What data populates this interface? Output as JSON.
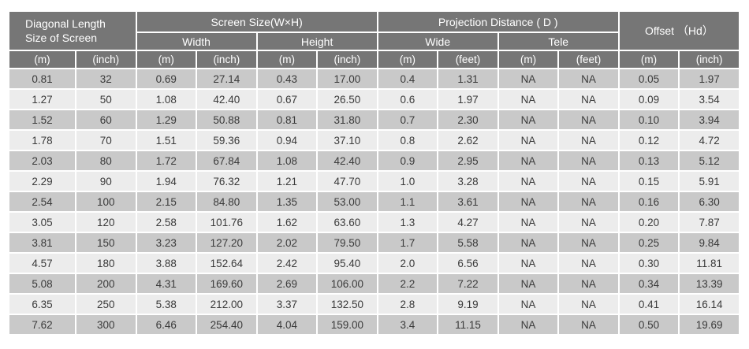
{
  "table": {
    "header": {
      "diagonal_line1": "Diagonal Length",
      "diagonal_line2": "Size of Screen",
      "screen_size": "Screen Size(W×H)",
      "projection_distance": "Projection Distance ( D )",
      "offset": "Offset （Hd）",
      "width": "Width",
      "height": "Height",
      "wide": "Wide",
      "tele": "Tele",
      "units": [
        "(m)",
        "(inch)",
        "(m)",
        "(inch)",
        "(m)",
        "(inch)",
        "(m)",
        "(feet)",
        "(m)",
        "(feet)",
        "(m)",
        "(inch)"
      ]
    },
    "rows": [
      [
        "0.81",
        "32",
        "0.69",
        "27.14",
        "0.43",
        "17.00",
        "0.4",
        "1.31",
        "NA",
        "NA",
        "0.05",
        "1.97"
      ],
      [
        "1.27",
        "50",
        "1.08",
        "42.40",
        "0.67",
        "26.50",
        "0.6",
        "1.97",
        "NA",
        "NA",
        "0.09",
        "3.54"
      ],
      [
        "1.52",
        "60",
        "1.29",
        "50.88",
        "0.81",
        "31.80",
        "0.7",
        "2.30",
        "NA",
        "NA",
        "0.10",
        "3.94"
      ],
      [
        "1.78",
        "70",
        "1.51",
        "59.36",
        "0.94",
        "37.10",
        "0.8",
        "2.62",
        "NA",
        "NA",
        "0.12",
        "4.72"
      ],
      [
        "2.03",
        "80",
        "1.72",
        "67.84",
        "1.08",
        "42.40",
        "0.9",
        "2.95",
        "NA",
        "NA",
        "0.13",
        "5.12"
      ],
      [
        "2.29",
        "90",
        "1.94",
        "76.32",
        "1.21",
        "47.70",
        "1.0",
        "3.28",
        "NA",
        "NA",
        "0.15",
        "5.91"
      ],
      [
        "2.54",
        "100",
        "2.15",
        "84.80",
        "1.35",
        "53.00",
        "1.1",
        "3.61",
        "NA",
        "NA",
        "0.16",
        "6.30"
      ],
      [
        "3.05",
        "120",
        "2.58",
        "101.76",
        "1.62",
        "63.60",
        "1.3",
        "4.27",
        "NA",
        "NA",
        "0.20",
        "7.87"
      ],
      [
        "3.81",
        "150",
        "3.23",
        "127.20",
        "2.02",
        "79.50",
        "1.7",
        "5.58",
        "NA",
        "NA",
        "0.25",
        "9.84"
      ],
      [
        "4.57",
        "180",
        "3.88",
        "152.64",
        "2.42",
        "95.40",
        "2.0",
        "6.56",
        "NA",
        "NA",
        "0.30",
        "11.81"
      ],
      [
        "5.08",
        "200",
        "4.31",
        "169.60",
        "2.69",
        "106.00",
        "2.2",
        "7.22",
        "NA",
        "NA",
        "0.34",
        "13.39"
      ],
      [
        "6.35",
        "250",
        "5.38",
        "212.00",
        "3.37",
        "132.50",
        "2.8",
        "9.19",
        "NA",
        "NA",
        "0.41",
        "16.14"
      ],
      [
        "7.62",
        "300",
        "6.46",
        "254.40",
        "4.04",
        "159.00",
        "3.4",
        "11.15",
        "NA",
        "NA",
        "0.50",
        "19.69"
      ]
    ],
    "colors": {
      "header_bg": "#767676",
      "header_text": "#ffffff",
      "row_dark": "#c9c9c9",
      "row_light": "#ececec",
      "cell_text": "#3a3a3a",
      "grid": "#ffffff"
    }
  }
}
